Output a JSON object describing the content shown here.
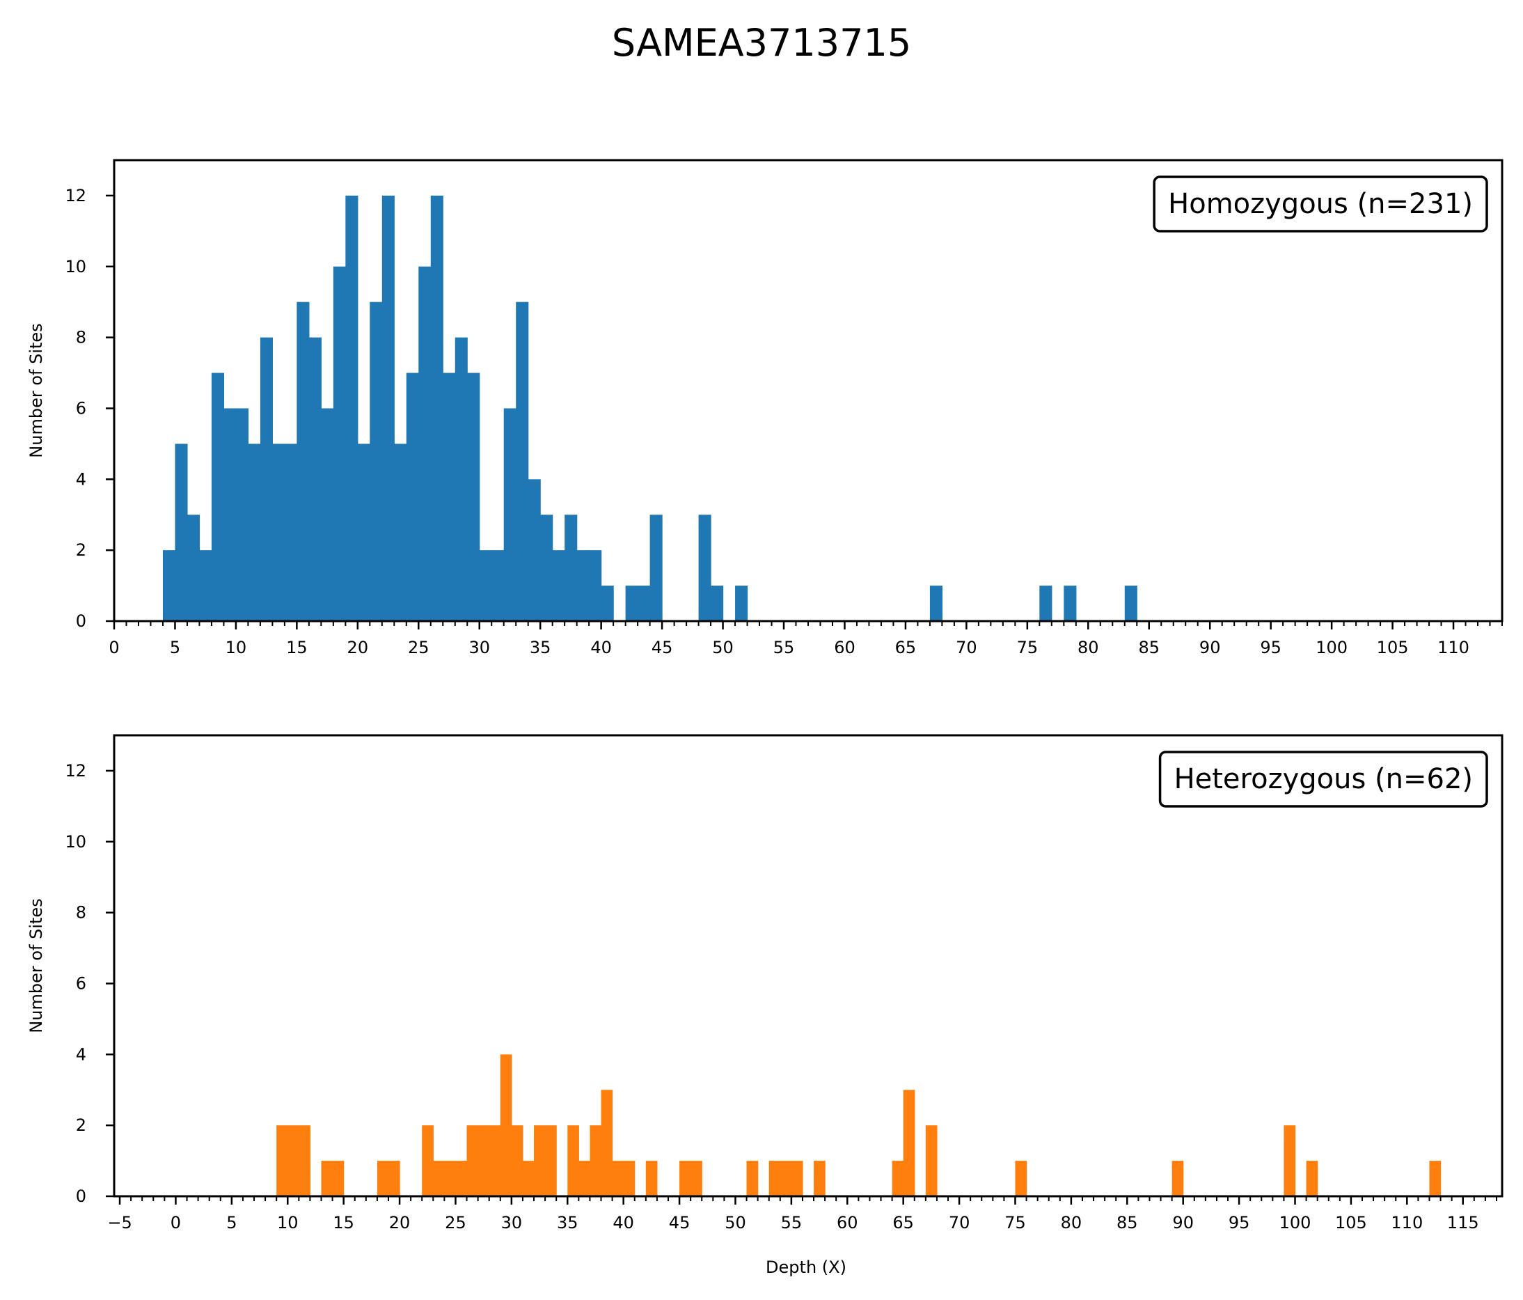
{
  "figure": {
    "title": "SAMEA3713715"
  },
  "chart_data": [
    {
      "type": "bar",
      "title": "",
      "xlabel": "",
      "ylabel": "Number of Sites",
      "legend": {
        "text": "Homozygous (n=231)",
        "placement": "top-right"
      },
      "color": "#1f77b4",
      "xlim": [
        0,
        114
      ],
      "ylim": [
        0,
        13
      ],
      "x_ticks": [
        0,
        5,
        10,
        15,
        20,
        25,
        30,
        35,
        40,
        45,
        50,
        55,
        60,
        65,
        70,
        75,
        80,
        85,
        90,
        95,
        100,
        105,
        110
      ],
      "y_ticks": [
        0,
        2,
        4,
        6,
        8,
        10,
        12
      ],
      "bin_width": 1,
      "bins": [
        {
          "x": 4,
          "count": 2
        },
        {
          "x": 5,
          "count": 5
        },
        {
          "x": 6,
          "count": 3
        },
        {
          "x": 7,
          "count": 2
        },
        {
          "x": 8,
          "count": 7
        },
        {
          "x": 9,
          "count": 6
        },
        {
          "x": 10,
          "count": 6
        },
        {
          "x": 11,
          "count": 5
        },
        {
          "x": 12,
          "count": 8
        },
        {
          "x": 13,
          "count": 5
        },
        {
          "x": 14,
          "count": 5
        },
        {
          "x": 15,
          "count": 9
        },
        {
          "x": 16,
          "count": 8
        },
        {
          "x": 17,
          "count": 6
        },
        {
          "x": 18,
          "count": 10
        },
        {
          "x": 19,
          "count": 12
        },
        {
          "x": 20,
          "count": 5
        },
        {
          "x": 21,
          "count": 9
        },
        {
          "x": 22,
          "count": 12
        },
        {
          "x": 23,
          "count": 5
        },
        {
          "x": 24,
          "count": 7
        },
        {
          "x": 25,
          "count": 10
        },
        {
          "x": 26,
          "count": 12
        },
        {
          "x": 27,
          "count": 7
        },
        {
          "x": 28,
          "count": 8
        },
        {
          "x": 29,
          "count": 7
        },
        {
          "x": 30,
          "count": 2
        },
        {
          "x": 31,
          "count": 2
        },
        {
          "x": 32,
          "count": 6
        },
        {
          "x": 33,
          "count": 9
        },
        {
          "x": 34,
          "count": 4
        },
        {
          "x": 35,
          "count": 3
        },
        {
          "x": 36,
          "count": 2
        },
        {
          "x": 37,
          "count": 3
        },
        {
          "x": 38,
          "count": 2
        },
        {
          "x": 39,
          "count": 2
        },
        {
          "x": 40,
          "count": 1
        },
        {
          "x": 42,
          "count": 1
        },
        {
          "x": 43,
          "count": 1
        },
        {
          "x": 44,
          "count": 3
        },
        {
          "x": 48,
          "count": 3
        },
        {
          "x": 49,
          "count": 1
        },
        {
          "x": 51,
          "count": 1
        },
        {
          "x": 67,
          "count": 1
        },
        {
          "x": 76,
          "count": 1
        },
        {
          "x": 78,
          "count": 1
        },
        {
          "x": 83,
          "count": 1
        }
      ]
    },
    {
      "type": "bar",
      "title": "",
      "xlabel": "Depth (X)",
      "ylabel": "Number of Sites",
      "legend": {
        "text": "Heterozygous (n=62)",
        "placement": "top-right"
      },
      "color": "#ff7f0e",
      "xlim": [
        -5.5,
        118.5
      ],
      "ylim": [
        0,
        13
      ],
      "x_ticks": [
        -5,
        0,
        5,
        10,
        15,
        20,
        25,
        30,
        35,
        40,
        45,
        50,
        55,
        60,
        65,
        70,
        75,
        80,
        85,
        90,
        95,
        100,
        105,
        110,
        115
      ],
      "y_ticks": [
        0,
        2,
        4,
        6,
        8,
        10,
        12
      ],
      "bin_width": 1,
      "bins": [
        {
          "x": 9,
          "count": 2
        },
        {
          "x": 10,
          "count": 2
        },
        {
          "x": 11,
          "count": 2
        },
        {
          "x": 13,
          "count": 1
        },
        {
          "x": 14,
          "count": 1
        },
        {
          "x": 18,
          "count": 1
        },
        {
          "x": 19,
          "count": 1
        },
        {
          "x": 22,
          "count": 2
        },
        {
          "x": 23,
          "count": 1
        },
        {
          "x": 24,
          "count": 1
        },
        {
          "x": 25,
          "count": 1
        },
        {
          "x": 26,
          "count": 2
        },
        {
          "x": 27,
          "count": 2
        },
        {
          "x": 28,
          "count": 2
        },
        {
          "x": 29,
          "count": 4
        },
        {
          "x": 30,
          "count": 2
        },
        {
          "x": 31,
          "count": 1
        },
        {
          "x": 32,
          "count": 2
        },
        {
          "x": 33,
          "count": 2
        },
        {
          "x": 35,
          "count": 2
        },
        {
          "x": 36,
          "count": 1
        },
        {
          "x": 37,
          "count": 2
        },
        {
          "x": 38,
          "count": 3
        },
        {
          "x": 39,
          "count": 1
        },
        {
          "x": 40,
          "count": 1
        },
        {
          "x": 42,
          "count": 1
        },
        {
          "x": 45,
          "count": 1
        },
        {
          "x": 46,
          "count": 1
        },
        {
          "x": 51,
          "count": 1
        },
        {
          "x": 53,
          "count": 1
        },
        {
          "x": 54,
          "count": 1
        },
        {
          "x": 55,
          "count": 1
        },
        {
          "x": 57,
          "count": 1
        },
        {
          "x": 64,
          "count": 1
        },
        {
          "x": 65,
          "count": 3
        },
        {
          "x": 67,
          "count": 2
        },
        {
          "x": 75,
          "count": 1
        },
        {
          "x": 89,
          "count": 1
        },
        {
          "x": 99,
          "count": 2
        },
        {
          "x": 101,
          "count": 1
        },
        {
          "x": 112,
          "count": 1
        }
      ]
    }
  ]
}
